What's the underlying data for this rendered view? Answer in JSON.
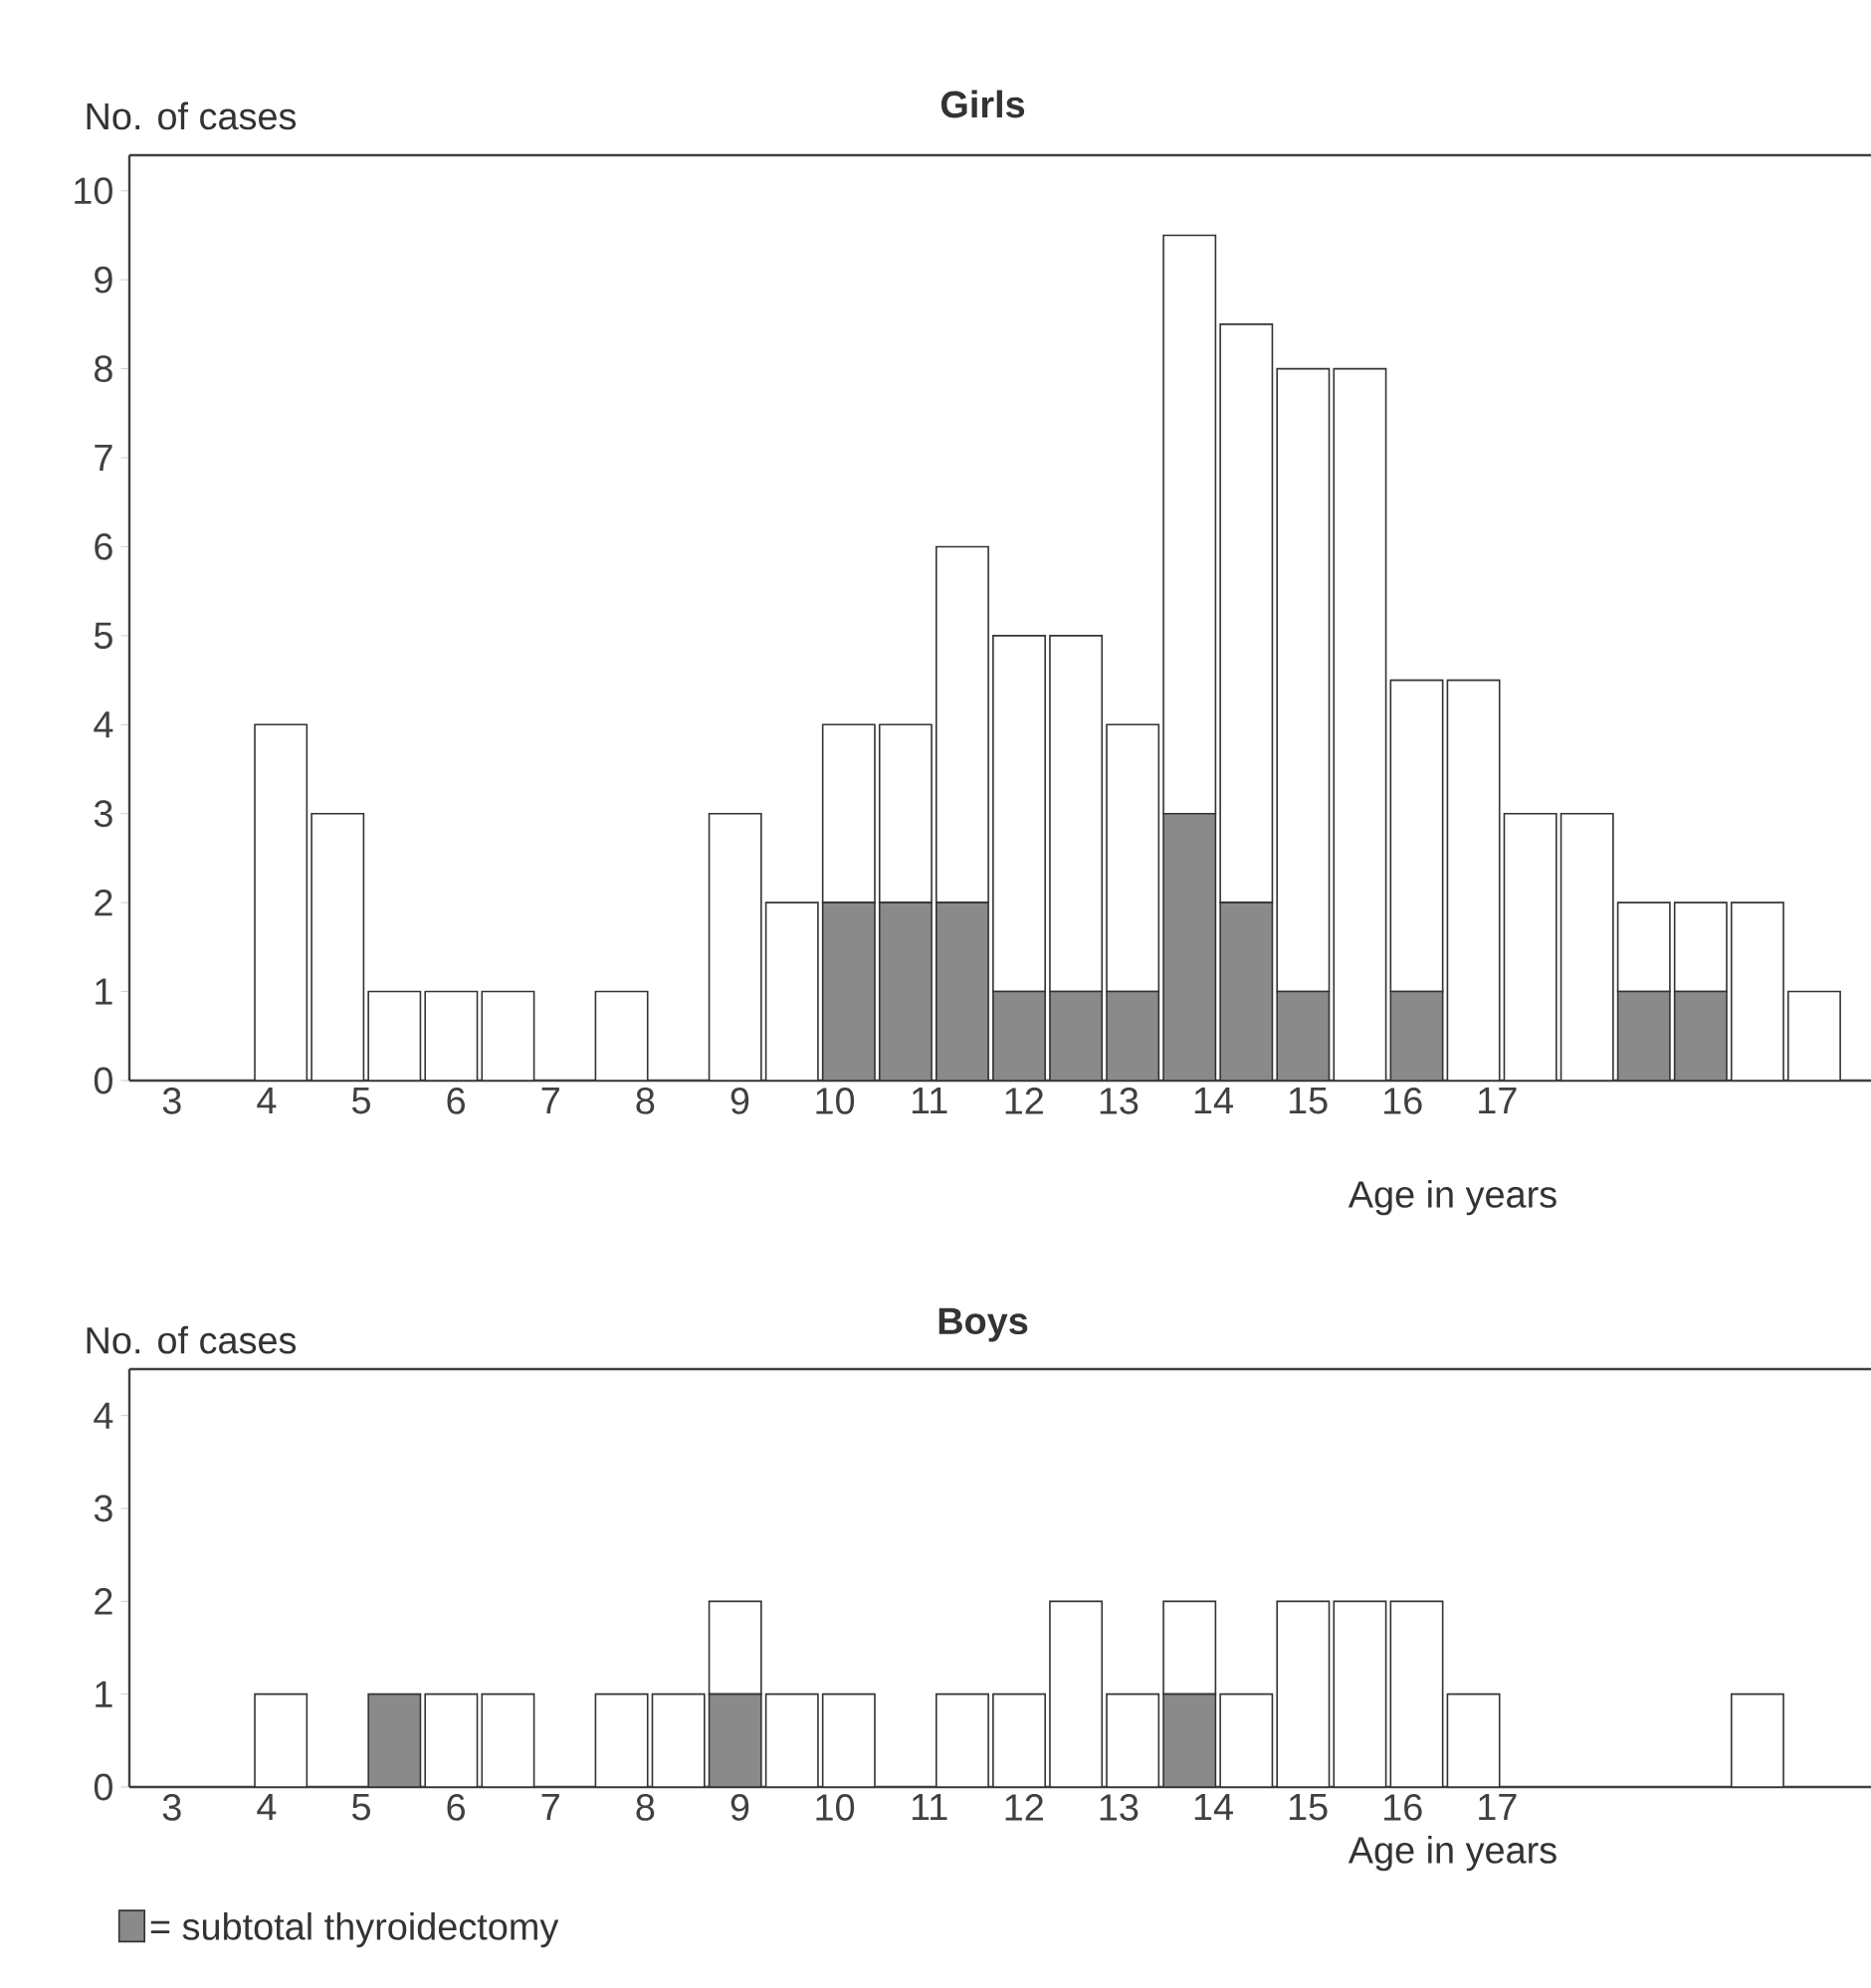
{
  "chart_data": [
    {
      "type": "bar",
      "title": "Girls",
      "ylabel": "No. of cases",
      "xlabel": "Age in years",
      "stacked": true,
      "x": [
        4.15,
        4.75,
        5.35,
        5.95,
        6.55,
        7.15,
        7.75,
        8.35,
        8.95,
        9.55,
        10.15,
        10.75,
        11.35,
        11.95,
        12.55,
        13.15,
        13.75,
        14.35,
        14.95,
        15.55,
        16.15,
        16.75,
        17.35,
        17.95,
        18.55,
        19.15,
        19.75,
        20.35
      ],
      "series": [
        {
          "color": "#8a8a8a",
          "values": [
            0,
            0,
            0,
            0,
            0,
            0,
            0,
            0,
            0,
            0,
            2,
            2,
            2,
            1,
            1,
            1,
            3,
            2,
            1,
            0,
            1,
            0,
            0,
            0,
            1,
            1,
            0,
            0
          ]
        },
        {
          "color": "#ffffff",
          "values": [
            4,
            3,
            1,
            1,
            1,
            0,
            1,
            0,
            3,
            2,
            2,
            2,
            4,
            4,
            4,
            3,
            6.5,
            6.5,
            7,
            8,
            3.5,
            4.5,
            3,
            3,
            1,
            1,
            2,
            1
          ]
        }
      ],
      "xlim": [
        2.55,
        20.95
      ],
      "xticks": [
        3,
        4,
        5,
        6,
        7,
        8,
        9,
        10,
        11,
        12,
        13,
        14,
        15,
        16,
        17
      ],
      "ylim": [
        0,
        10.4
      ],
      "yticks": [
        0,
        1,
        2,
        3,
        4,
        5,
        6,
        7,
        8,
        9,
        10
      ]
    },
    {
      "type": "bar",
      "title": "Boys",
      "ylabel": "No. of cases",
      "xlabel": "Age in years",
      "stacked": true,
      "legend": "bottom left",
      "x": [
        4.15,
        4.75,
        5.35,
        5.95,
        6.55,
        7.15,
        7.75,
        8.35,
        8.95,
        9.55,
        10.15,
        10.75,
        11.35,
        11.95,
        12.55,
        13.15,
        13.75,
        14.35,
        14.95,
        15.55,
        16.15,
        16.75,
        17.35,
        17.95,
        18.55,
        19.15,
        19.75,
        20.35
      ],
      "series": [
        {
          "name": "= subtotal thyroidectomy",
          "color": "#8a8a8a",
          "values": [
            0,
            0,
            1,
            0,
            0,
            0,
            0,
            0,
            1,
            0,
            0,
            0,
            0,
            0,
            0,
            0,
            1,
            0,
            0,
            0,
            0,
            0,
            0,
            0,
            0,
            0,
            0,
            0
          ]
        },
        {
          "color": "#ffffff",
          "values": [
            1,
            0,
            0,
            1,
            1,
            0,
            1,
            1,
            1,
            1,
            1,
            0,
            1,
            1,
            2,
            1,
            1,
            1,
            2,
            2,
            2,
            1,
            0,
            0,
            0,
            0,
            1,
            0
          ]
        }
      ],
      "xlim": [
        2.55,
        20.95
      ],
      "xticks": [
        3,
        4,
        5,
        6,
        7,
        8,
        9,
        10,
        11,
        12,
        13,
        14,
        15,
        16,
        17
      ],
      "ylim": [
        0,
        4.5
      ],
      "yticks": [
        0,
        1,
        2,
        3,
        4
      ]
    }
  ]
}
